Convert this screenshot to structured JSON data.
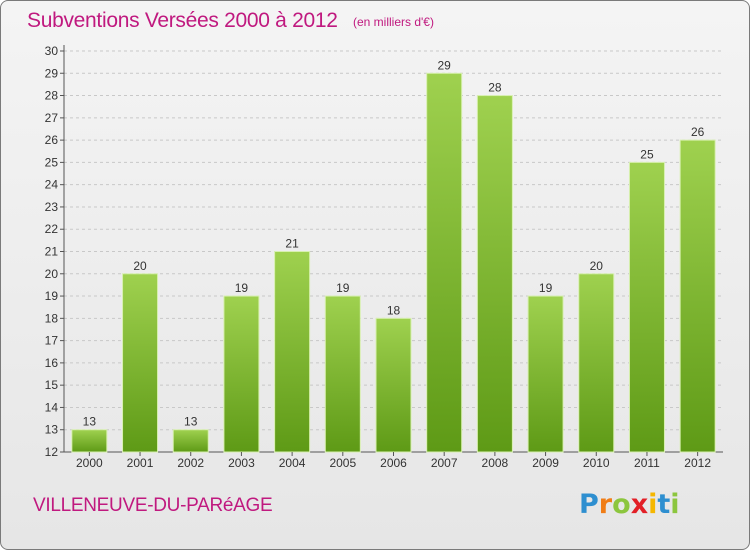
{
  "header": {
    "title": "Subventions Versées 2000 à 2012",
    "subtitle": "(en milliers d'€)"
  },
  "footer": {
    "commune": "VILLENEUVE-DU-PARéAGE",
    "logo_letters": [
      "P",
      "r",
      "o",
      "x",
      "i",
      "t",
      "i"
    ],
    "logo_colors": [
      "#2e8fd0",
      "#f07d16",
      "#8cc63e",
      "#e21f26",
      "#f5b700",
      "#2e8fd0",
      "#8cc63e"
    ]
  },
  "chart_data": {
    "type": "bar",
    "title": "Subventions Versées 2000 à 2012",
    "subtitle": "(en milliers d'€)",
    "categories": [
      "2000",
      "2001",
      "2002",
      "2003",
      "2004",
      "2005",
      "2006",
      "2007",
      "2008",
      "2009",
      "2010",
      "2011",
      "2012"
    ],
    "values": [
      13,
      20,
      13,
      19,
      21,
      19,
      18,
      29,
      28,
      19,
      20,
      25,
      26
    ],
    "data_labels": [
      "13",
      "20",
      "13",
      "19",
      "21",
      "19",
      "18",
      "29",
      "28",
      "19",
      "20",
      "25",
      "26"
    ],
    "y_ticks": [
      "12",
      "13",
      "14",
      "15",
      "16",
      "17",
      "18",
      "19",
      "20",
      "21",
      "22",
      "23",
      "24",
      "25",
      "26",
      "27",
      "28",
      "29",
      "30"
    ],
    "ylim": [
      12,
      30
    ],
    "xlabel": "",
    "ylabel": "",
    "grid": true,
    "bar_color_top": "#9fd14f",
    "bar_color_bottom": "#5e9a16"
  }
}
